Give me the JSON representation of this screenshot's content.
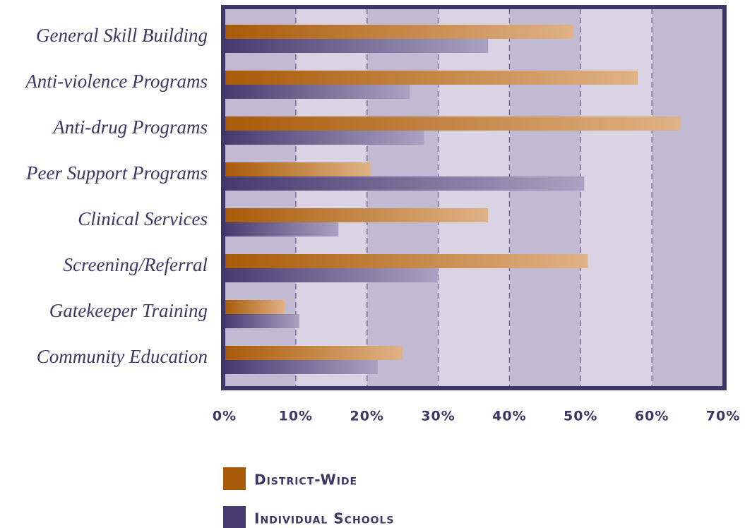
{
  "chart_data": {
    "type": "bar",
    "orientation": "horizontal",
    "categories": [
      "General Skill Building",
      "Anti-violence Programs",
      "Anti-drug Programs",
      "Peer Support Programs",
      "Clinical Services",
      "Screening/Referral",
      "Gatekeeper Training",
      "Community Education"
    ],
    "series": [
      {
        "name": "District-Wide",
        "color": "#a85a08",
        "values": [
          49,
          58,
          64,
          20.5,
          37,
          51,
          8.5,
          25
        ]
      },
      {
        "name": "Individual Schools",
        "color": "#463a6e",
        "values": [
          37,
          26,
          28,
          50.5,
          16,
          30,
          10.5,
          21.5
        ]
      }
    ],
    "xlim": [
      0,
      70
    ],
    "xticks": [
      {
        "value": 0,
        "label": "0%"
      },
      {
        "value": 10,
        "label": "10%"
      },
      {
        "value": 20,
        "label": "20%"
      },
      {
        "value": 30,
        "label": "30%"
      },
      {
        "value": 40,
        "label": "40%"
      },
      {
        "value": 50,
        "label": "50%"
      },
      {
        "value": 60,
        "label": "60%"
      },
      {
        "value": 70,
        "label": "70%"
      }
    ],
    "grid": true,
    "legend": "bottom"
  }
}
